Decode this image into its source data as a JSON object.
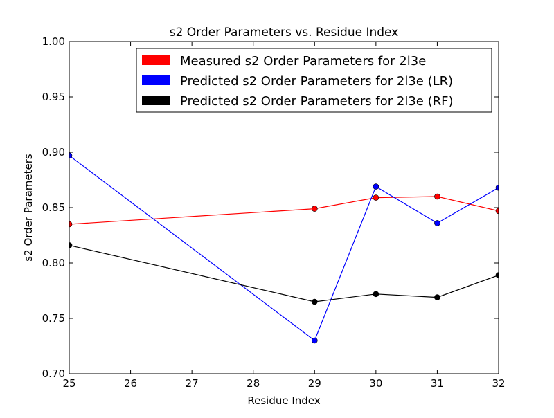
{
  "chart_data": {
    "type": "line",
    "title": "s2 Order Parameters vs. Residue Index",
    "xlabel": "Residue Index",
    "ylabel": "s2 Order Parameters",
    "xlim": [
      25,
      32
    ],
    "ylim": [
      0.7,
      1.0
    ],
    "xticks": [
      "25",
      "26",
      "27",
      "28",
      "29",
      "30",
      "31",
      "32"
    ],
    "yticks": [
      "0.70",
      "0.75",
      "0.80",
      "0.85",
      "0.90",
      "0.95",
      "1.00"
    ],
    "grid": false,
    "legend_position": "top-right",
    "x": [
      25,
      29,
      30,
      31,
      32
    ],
    "series": [
      {
        "name": "Measured s2 Order Parameters for 2l3e",
        "color": "#ff0000",
        "values": [
          0.835,
          0.849,
          0.859,
          0.86,
          0.847
        ]
      },
      {
        "name": "Predicted s2 Order Parameters for 2l3e (LR)",
        "color": "#0000ff",
        "values": [
          0.897,
          0.73,
          0.869,
          0.836,
          0.868
        ]
      },
      {
        "name": "Predicted s2 Order Parameters for 2l3e (RF)",
        "color": "#000000",
        "values": [
          0.816,
          0.765,
          0.772,
          0.769,
          0.789
        ]
      }
    ]
  }
}
